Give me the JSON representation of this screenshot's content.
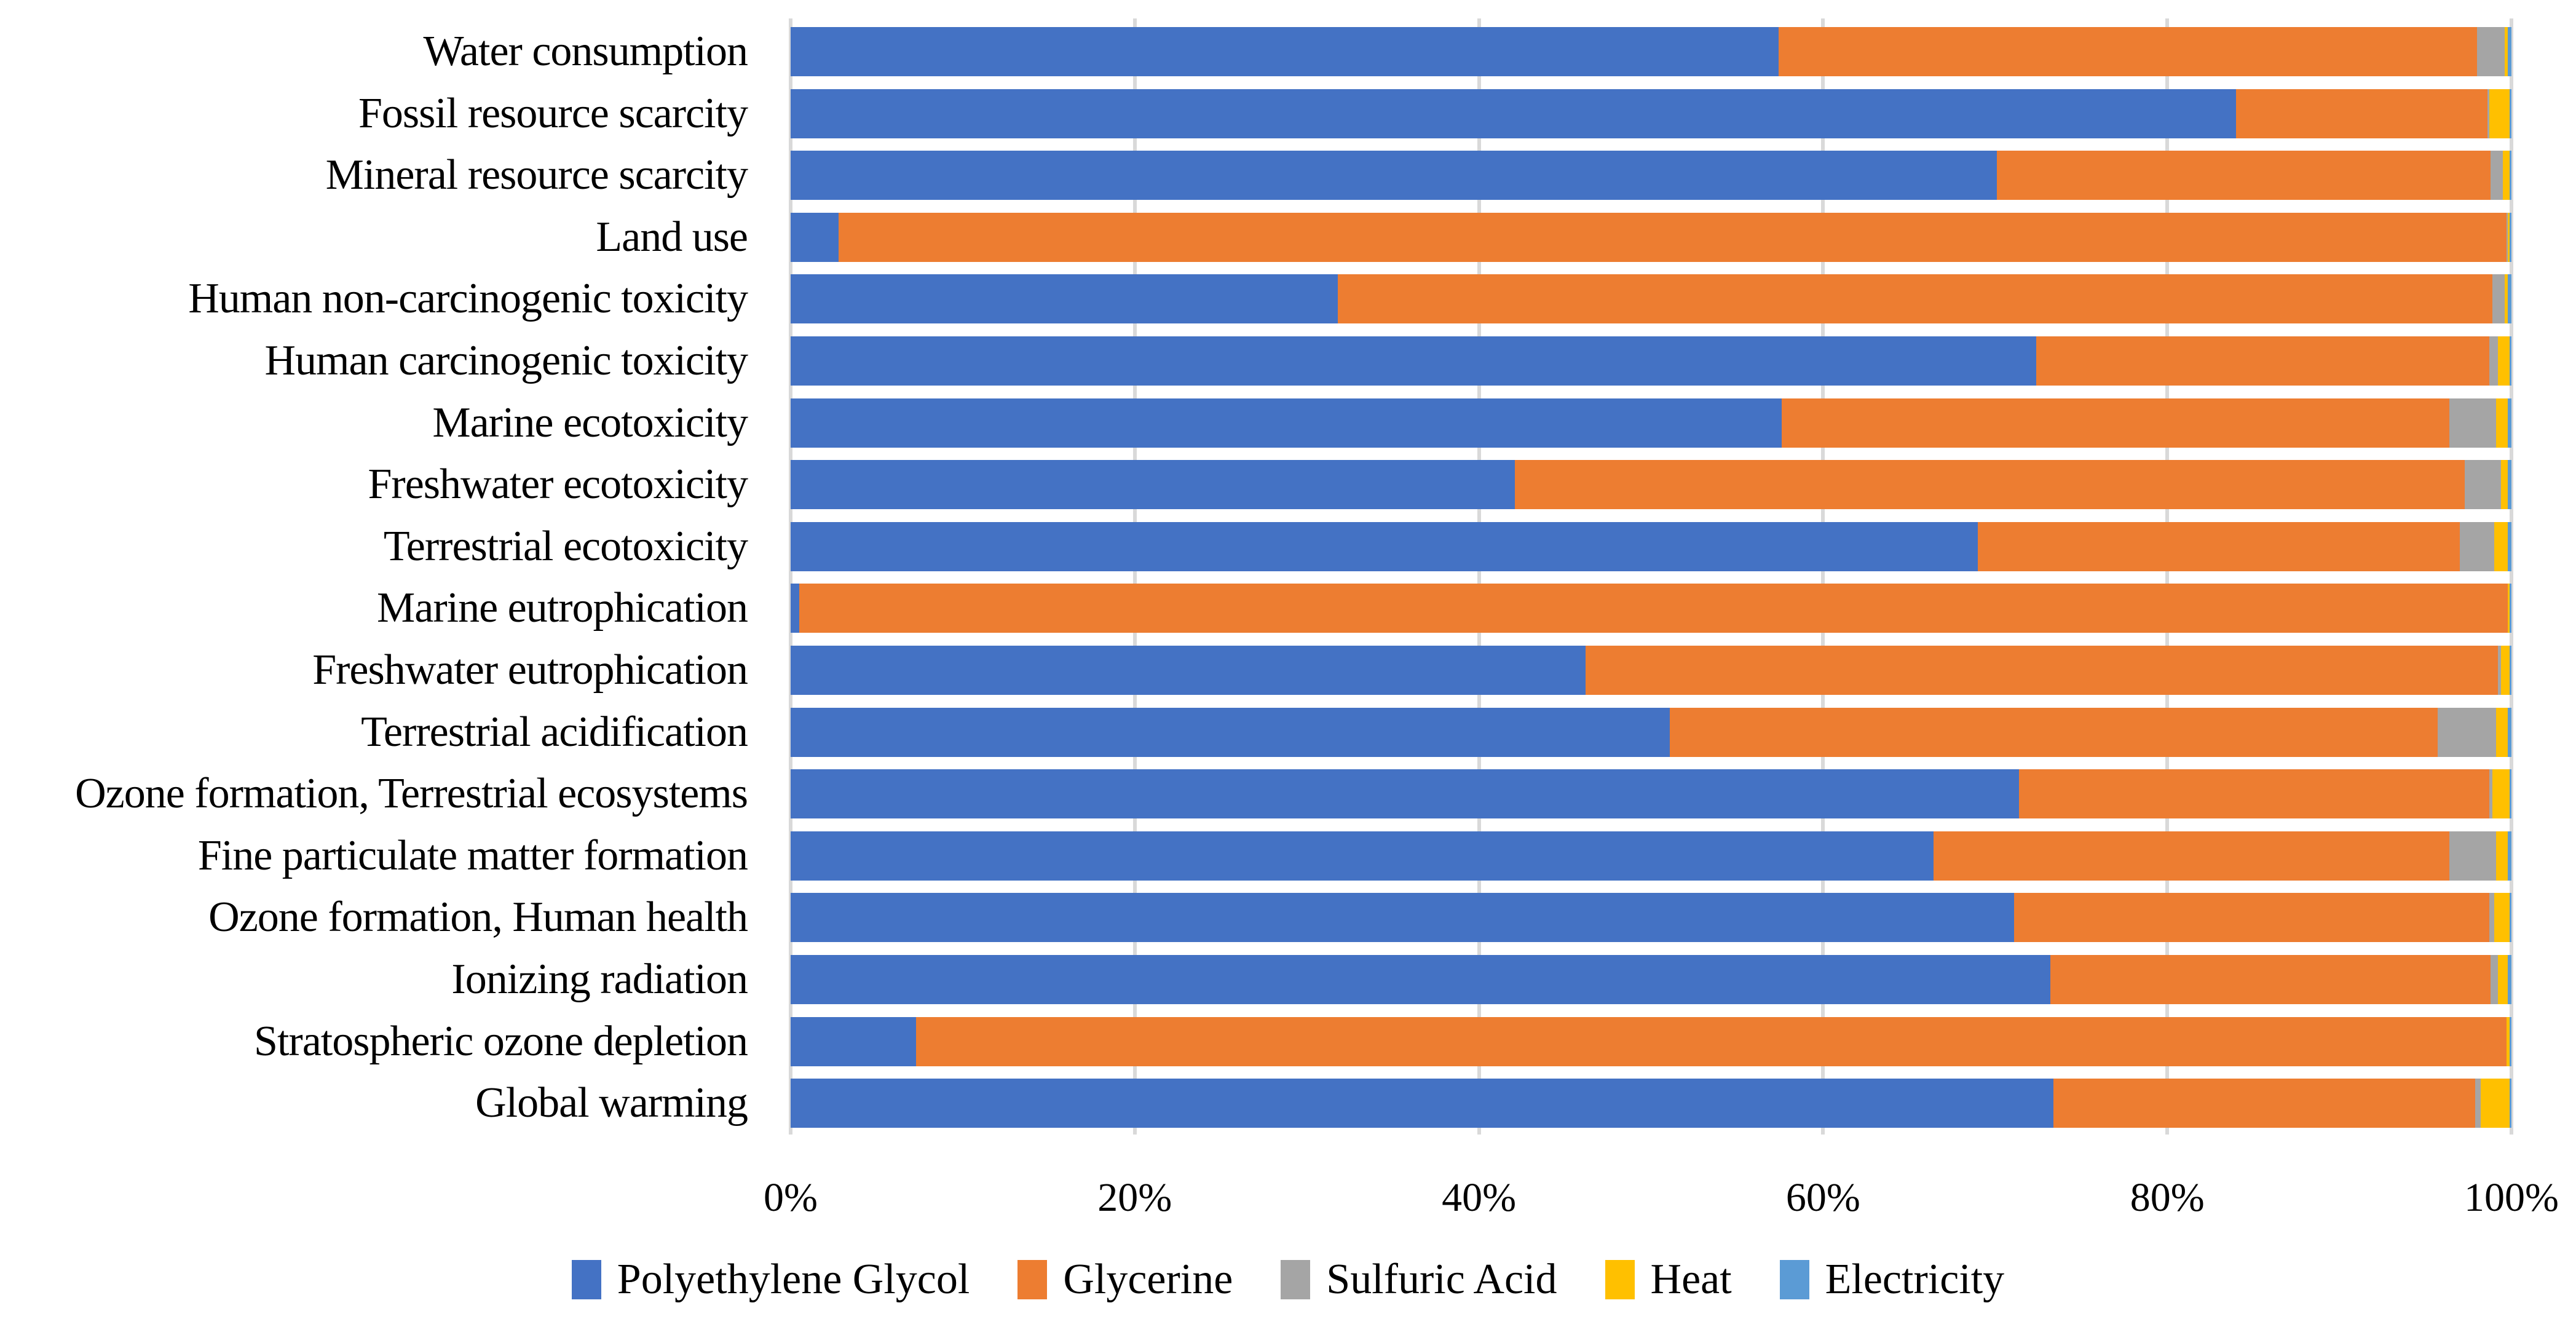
{
  "colors": {
    "background": "#FFFFFF",
    "gridline": "#D9D9D9",
    "text": "#000000"
  },
  "chart_data": {
    "type": "bar",
    "orientation": "horizontal-stacked",
    "title": "",
    "xlabel": "",
    "ylabel": "",
    "unit": "percent",
    "xlim": [
      0,
      100
    ],
    "grid": true,
    "legend_position": "bottom",
    "x_ticks": [
      "0%",
      "20%",
      "40%",
      "60%",
      "80%",
      "100%"
    ],
    "x_tick_values": [
      0,
      20,
      40,
      60,
      80,
      100
    ],
    "categories": [
      "Water consumption",
      "Fossil resource scarcity",
      "Mineral resource scarcity",
      "Land use",
      "Human non-carcinogenic toxicity",
      "Human carcinogenic toxicity",
      "Marine ecotoxicity",
      "Freshwater ecotoxicity",
      "Terrestrial ecotoxicity",
      "Marine eutrophication",
      "Freshwater eutrophication",
      "Terrestrial acidification",
      "Ozone formation, Terrestrial ecosystems",
      "Fine particulate matter formation",
      "Ozone formation, Human health",
      "Ionizing radiation",
      "Stratospheric ozone depletion",
      "Global warming"
    ],
    "series": [
      {
        "name": "Polyethylene Glycol",
        "color": "#4472C4",
        "values": [
          57.4,
          84.0,
          70.1,
          2.8,
          31.8,
          72.4,
          57.6,
          42.1,
          69.0,
          0.5,
          46.2,
          51.1,
          71.4,
          66.4,
          71.1,
          73.2,
          7.3,
          73.4
        ]
      },
      {
        "name": "Glycerine",
        "color": "#ED7D31",
        "values": [
          40.6,
          14.6,
          28.7,
          96.9,
          67.1,
          26.3,
          38.8,
          55.2,
          28.0,
          99.3,
          53.0,
          44.6,
          27.3,
          30.0,
          27.6,
          25.6,
          92.4,
          24.5
        ]
      },
      {
        "name": "Sulfuric Acid",
        "color": "#A5A5A5",
        "values": [
          1.6,
          0.1,
          0.7,
          0.1,
          0.7,
          0.5,
          2.7,
          2.1,
          2.0,
          0.0,
          0.2,
          3.4,
          0.2,
          2.7,
          0.3,
          0.4,
          0.0,
          0.3
        ]
      },
      {
        "name": "Heat",
        "color": "#FFC000",
        "values": [
          0.2,
          1.2,
          0.4,
          0.1,
          0.2,
          0.7,
          0.7,
          0.4,
          0.8,
          0.1,
          0.5,
          0.7,
          1.0,
          0.7,
          0.9,
          0.6,
          0.2,
          1.7
        ]
      },
      {
        "name": "Electricity",
        "color": "#5B9BD5",
        "values": [
          0.2,
          0.1,
          0.1,
          0.1,
          0.2,
          0.1,
          0.2,
          0.2,
          0.2,
          0.1,
          0.1,
          0.2,
          0.1,
          0.2,
          0.1,
          0.2,
          0.1,
          0.1
        ]
      }
    ]
  }
}
